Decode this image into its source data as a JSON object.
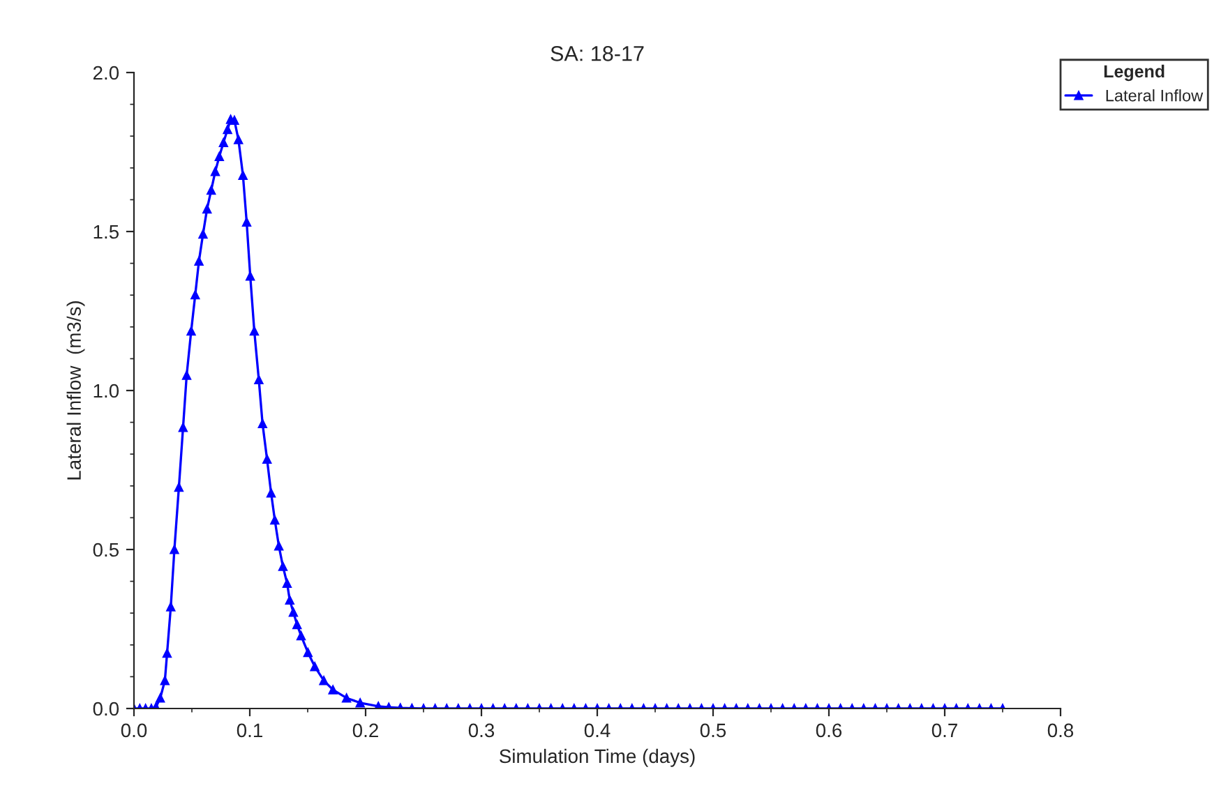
{
  "chart_data": {
    "type": "line",
    "title": "SA: 18-17",
    "xlabel": "Simulation Time (days)",
    "ylabel": "Lateral Inflow  (m3/s)",
    "legend_title": "Legend",
    "legend": "top right",
    "marker": "triangle",
    "line_style": "solid",
    "grid": false,
    "xlim": [
      0,
      0.8
    ],
    "ylim": [
      0,
      2.0
    ],
    "xticks": [
      {
        "value": 0,
        "label": "0.0"
      },
      0.1,
      0.2,
      0.3,
      0.4,
      0.5,
      0.6,
      0.7,
      0.8
    ],
    "yticks": [
      {
        "value": 0,
        "label": "0.0"
      },
      0.5,
      {
        "value": 1,
        "label": "1.0"
      },
      1.5,
      {
        "value": 2,
        "label": "2.0"
      }
    ],
    "x": [
      0,
      0.005,
      0.01,
      0.015,
      0.019,
      0.0227,
      0.0267,
      0.0286,
      0.0318,
      0.0349,
      0.0388,
      0.0424,
      0.0455,
      0.0494,
      0.0529,
      0.0561,
      0.0596,
      0.0631,
      0.0667,
      0.0702,
      0.0737,
      0.0773,
      0.0808,
      0.0835,
      0.0867,
      0.0902,
      0.0941,
      0.0973,
      0.1004,
      0.1039,
      0.1078,
      0.111,
      0.1149,
      0.1184,
      0.1216,
      0.1251,
      0.1286,
      0.1322,
      0.1345,
      0.1376,
      0.1408,
      0.1443,
      0.1502,
      0.1561,
      0.1639,
      0.1718,
      0.1835,
      0.1953,
      0.211,
      0.22,
      0.23,
      0.24,
      0.25,
      0.26,
      0.27,
      0.28,
      0.29,
      0.3,
      0.31,
      0.32,
      0.33,
      0.34,
      0.35,
      0.36,
      0.37,
      0.38,
      0.39,
      0.4,
      0.41,
      0.42,
      0.43,
      0.44,
      0.45,
      0.46,
      0.47,
      0.48,
      0.49,
      0.5,
      0.51,
      0.52,
      0.53,
      0.54,
      0.55,
      0.56,
      0.57,
      0.58,
      0.59,
      0.6,
      0.61,
      0.62,
      0.63,
      0.64,
      0.65,
      0.66,
      0.67,
      0.68,
      0.69,
      0.7,
      0.71,
      0.72,
      0.73,
      0.74,
      0.75
    ],
    "series": [
      {
        "name": "Lateral Inflow",
        "color": "#0000ff",
        "values": [
          0,
          0,
          0,
          0,
          0.005,
          0.033,
          0.088,
          0.174,
          0.32,
          0.5,
          0.696,
          0.884,
          1.048,
          1.187,
          1.301,
          1.407,
          1.492,
          1.571,
          1.63,
          1.689,
          1.736,
          1.78,
          1.821,
          1.853,
          1.85,
          1.789,
          1.677,
          1.53,
          1.36,
          1.187,
          1.034,
          0.896,
          0.784,
          0.678,
          0.593,
          0.511,
          0.447,
          0.394,
          0.341,
          0.303,
          0.264,
          0.229,
          0.176,
          0.132,
          0.088,
          0.059,
          0.033,
          0.018,
          0.007,
          0.004,
          0.002,
          0.001,
          0,
          0,
          0,
          0,
          0,
          0,
          0,
          0,
          0,
          0,
          0,
          0,
          0,
          0,
          0,
          0,
          0,
          0,
          0,
          0,
          0,
          0,
          0,
          0,
          0,
          0,
          0,
          0,
          0,
          0,
          0,
          0,
          0,
          0,
          0,
          0,
          0,
          0,
          0,
          0,
          0,
          0,
          0,
          0,
          0,
          0,
          0,
          0,
          0,
          0,
          0
        ]
      }
    ]
  }
}
